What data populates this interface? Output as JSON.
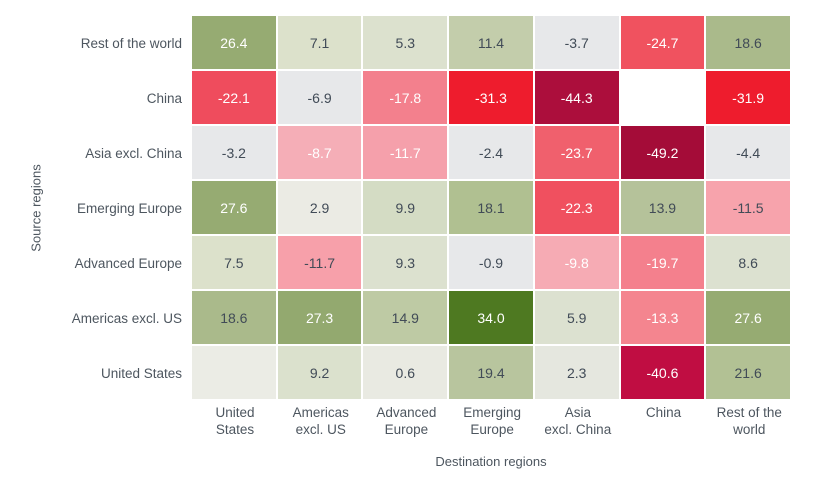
{
  "chart_data": {
    "type": "heatmap",
    "title": "",
    "xlabel": "Destination regions",
    "ylabel": "Source regions",
    "legend": "none",
    "grid": "off",
    "palette": {
      "dark_text": "#414b57",
      "light_text": "#ffffff",
      "gap_color": "#ffffff",
      "max_green": "#4e7921",
      "max_red": "#a40c38",
      "neutral_gray": "#e7e8ea"
    },
    "columns": [
      "United\nStates",
      "Americas\nexcl. US",
      "Advanced\nEurope",
      "Emerging\nEurope",
      "Asia\nexcl. China",
      "China",
      "Rest of the\nworld"
    ],
    "rows": [
      {
        "label": "Rest of the world",
        "cells": [
          {
            "v": 26.4,
            "t": "26.4",
            "bg": "#96ab72",
            "fg": "light"
          },
          {
            "v": 7.1,
            "t": "7.1",
            "bg": "#dce1cb",
            "fg": "dark"
          },
          {
            "v": 5.3,
            "t": "5.3",
            "bg": "#dce1ce",
            "fg": "dark"
          },
          {
            "v": 11.4,
            "t": "11.4",
            "bg": "#c3cdab",
            "fg": "dark"
          },
          {
            "v": -3.7,
            "t": "-3.7",
            "bg": "#e7e8ea",
            "fg": "dark"
          },
          {
            "v": -24.7,
            "t": "-24.7",
            "bg": "#f0525f",
            "fg": "light"
          },
          {
            "v": 18.6,
            "t": "18.6",
            "bg": "#aaba8b",
            "fg": "dark"
          }
        ]
      },
      {
        "label": "China",
        "cells": [
          {
            "v": -22.1,
            "t": "-22.1",
            "bg": "#ef4c5d",
            "fg": "light"
          },
          {
            "v": -6.9,
            "t": "-6.9",
            "bg": "#e7e8ea",
            "fg": "dark"
          },
          {
            "v": -17.8,
            "t": "-17.8",
            "bg": "#f3808d",
            "fg": "light"
          },
          {
            "v": -31.3,
            "t": "-31.3",
            "bg": "#ee1c2d",
            "fg": "light"
          },
          {
            "v": -44.3,
            "t": "-44.3",
            "bg": "#ac0e3c",
            "fg": "light"
          },
          {
            "v": null,
            "t": "",
            "bg": "#ffffff",
            "fg": "dark"
          },
          {
            "v": -31.9,
            "t": "-31.9",
            "bg": "#ee1c2d",
            "fg": "light"
          }
        ]
      },
      {
        "label": "Asia excl. China",
        "cells": [
          {
            "v": -3.2,
            "t": "-3.2",
            "bg": "#e7e8ea",
            "fg": "dark"
          },
          {
            "v": -8.7,
            "t": "-8.7",
            "bg": "#f5aeb7",
            "fg": "light"
          },
          {
            "v": -11.7,
            "t": "-11.7",
            "bg": "#f5a0ab",
            "fg": "light"
          },
          {
            "v": -2.4,
            "t": "-2.4",
            "bg": "#e7e8ea",
            "fg": "dark"
          },
          {
            "v": -23.7,
            "t": "-23.7",
            "bg": "#f0606d",
            "fg": "light"
          },
          {
            "v": -49.2,
            "t": "-49.2",
            "bg": "#a40c38",
            "fg": "light"
          },
          {
            "v": -4.4,
            "t": "-4.4",
            "bg": "#e7e8ea",
            "fg": "dark"
          }
        ]
      },
      {
        "label": "Emerging Europe",
        "cells": [
          {
            "v": 27.6,
            "t": "27.6",
            "bg": "#96ab72",
            "fg": "light"
          },
          {
            "v": 2.9,
            "t": "2.9",
            "bg": "#ebebe4",
            "fg": "dark"
          },
          {
            "v": 9.9,
            "t": "9.9",
            "bg": "#d4dcc4",
            "fg": "dark"
          },
          {
            "v": 18.1,
            "t": "18.1",
            "bg": "#b0c091",
            "fg": "dark"
          },
          {
            "v": -22.3,
            "t": "-22.3",
            "bg": "#f0505f",
            "fg": "light"
          },
          {
            "v": 13.9,
            "t": "13.9",
            "bg": "#b5c29a",
            "fg": "dark"
          },
          {
            "v": -11.5,
            "t": "-11.5",
            "bg": "#f7a3ac",
            "fg": "dark"
          }
        ]
      },
      {
        "label": "Advanced Europe",
        "cells": [
          {
            "v": 7.5,
            "t": "7.5",
            "bg": "#dce1cb",
            "fg": "dark"
          },
          {
            "v": -11.7,
            "t": "-11.7",
            "bg": "#f7a0aa",
            "fg": "dark"
          },
          {
            "v": 9.3,
            "t": "9.3",
            "bg": "#dce1cf",
            "fg": "dark"
          },
          {
            "v": -0.9,
            "t": "-0.9",
            "bg": "#e7e8ea",
            "fg": "dark"
          },
          {
            "v": -9.8,
            "t": "-9.8",
            "bg": "#f6abb4",
            "fg": "light"
          },
          {
            "v": -19.7,
            "t": "-19.7",
            "bg": "#f4808d",
            "fg": "light"
          },
          {
            "v": 8.6,
            "t": "8.6",
            "bg": "#dce1d0",
            "fg": "dark"
          }
        ]
      },
      {
        "label": "Americas excl. US",
        "cells": [
          {
            "v": 18.6,
            "t": "18.6",
            "bg": "#aaba8b",
            "fg": "dark"
          },
          {
            "v": 27.3,
            "t": "27.3",
            "bg": "#93a96f",
            "fg": "light"
          },
          {
            "v": 14.9,
            "t": "14.9",
            "bg": "#becaa4",
            "fg": "dark"
          },
          {
            "v": 34.0,
            "t": "34.0",
            "bg": "#4e7921",
            "fg": "light"
          },
          {
            "v": 5.9,
            "t": "5.9",
            "bg": "#dce1d0",
            "fg": "dark"
          },
          {
            "v": -13.3,
            "t": "-13.3",
            "bg": "#f4858f",
            "fg": "light"
          },
          {
            "v": 27.6,
            "t": "27.6",
            "bg": "#96ab72",
            "fg": "light"
          }
        ]
      },
      {
        "label": "United States",
        "cells": [
          {
            "v": null,
            "t": "",
            "bg": "#ebece5",
            "fg": "dark"
          },
          {
            "v": 9.2,
            "t": "9.2",
            "bg": "#dbe1cd",
            "fg": "dark"
          },
          {
            "v": 0.6,
            "t": "0.6",
            "bg": "#e9eae2",
            "fg": "dark"
          },
          {
            "v": 19.4,
            "t": "19.4",
            "bg": "#b8c59e",
            "fg": "dark"
          },
          {
            "v": 2.3,
            "t": "2.3",
            "bg": "#e5e7df",
            "fg": "dark"
          },
          {
            "v": -40.6,
            "t": "-40.6",
            "bg": "#c00d42",
            "fg": "light"
          },
          {
            "v": 21.6,
            "t": "21.6",
            "bg": "#b2c194",
            "fg": "dark"
          }
        ]
      }
    ]
  }
}
